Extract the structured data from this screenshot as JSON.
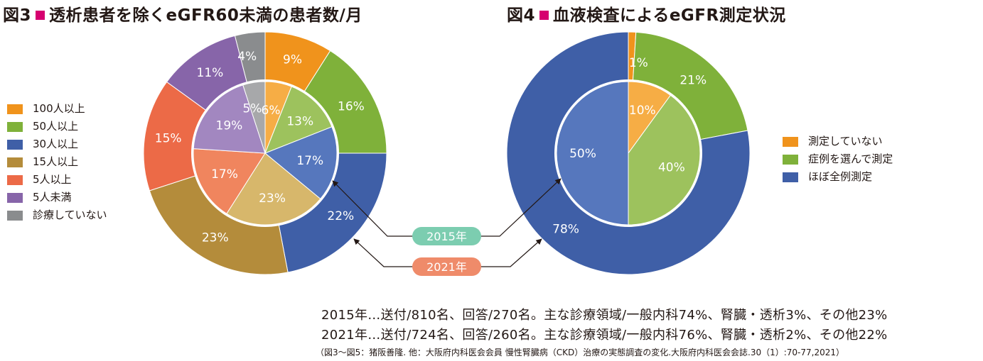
{
  "fig3": {
    "prefix": "図3",
    "title": "透析患者を除くeGFR60未満の患者数/月"
  },
  "fig4": {
    "prefix": "図4",
    "title": "血液検査によるeGFR測定状況"
  },
  "chart_data": [
    {
      "type": "pie",
      "layout": "donut-nested",
      "categories": [
        "100人以上",
        "50人以上",
        "30人以上",
        "15人以上",
        "5人以上",
        "5人未満",
        "診療していない"
      ],
      "colors": [
        "#f0931c",
        "#7fb13a",
        "#3f5fa7",
        "#b48c3b",
        "#ec6a47",
        "#8765a9",
        "#8a8c8e"
      ],
      "inner_colors": [
        "#f6ad45",
        "#9dc25d",
        "#5677bd",
        "#d7b76b",
        "#f0855e",
        "#a287c0",
        "#a7a8aa"
      ],
      "series": [
        {
          "name": "2021年",
          "ring": "outer",
          "values": [
            9,
            16,
            22,
            23,
            15,
            11,
            4
          ]
        },
        {
          "name": "2015年",
          "ring": "inner",
          "values": [
            6,
            13,
            17,
            23,
            17,
            19,
            5
          ]
        }
      ],
      "unit": "%"
    },
    {
      "type": "pie",
      "layout": "donut-nested",
      "categories": [
        "測定していない",
        "症例を選んで測定",
        "ほぼ全例測定"
      ],
      "colors": [
        "#f0931c",
        "#7fb13a",
        "#3f5fa7"
      ],
      "inner_colors": [
        "#f6ad45",
        "#9dc25d",
        "#5677bd"
      ],
      "series": [
        {
          "name": "2021年",
          "ring": "outer",
          "values": [
            1,
            21,
            78
          ]
        },
        {
          "name": "2015年",
          "ring": "inner",
          "values": [
            10,
            40,
            50
          ]
        }
      ],
      "unit": "%"
    }
  ],
  "badges": {
    "year_2015": "2015年",
    "year_2021": "2021年",
    "color_2015": "#7ccdb0",
    "color_2021": "#ef8b6a"
  },
  "notes": {
    "line1": "2015年…送付/810名、回答/270名。主な診療領域/一般内科74%、腎臓・透析3%、その他23%",
    "line2": "2021年…送付/724名、回答/260名。主な診療領域/一般内科76%、腎臓・透析2%、その他22%"
  },
  "source": "（図3〜図5：猪阪善隆. 他：大阪府内科医会会員 慢性腎臓病（CKD）治療の実態調査の変化.大阪府内科医会会誌.30（1）:70-77,2021）"
}
